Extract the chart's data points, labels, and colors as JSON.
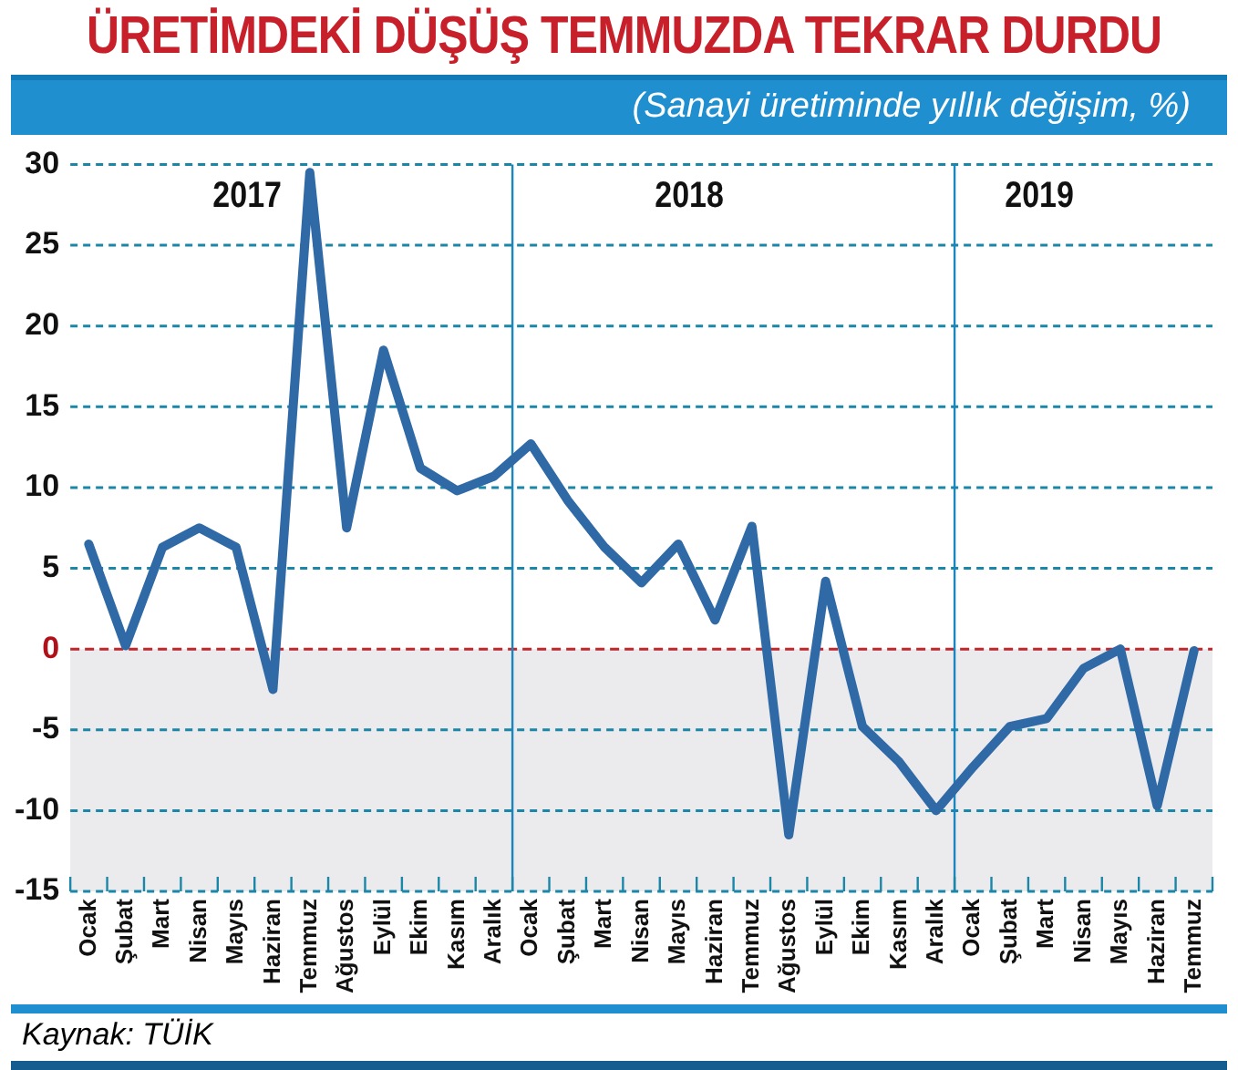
{
  "chart_data": {
    "type": "line",
    "title": "ÜRETİMDEKİ DÜŞÜŞ TEMMUZDA TEKRAR DURDU",
    "subtitle": "(Sanayi üretiminde yıllık değişim, %)",
    "categories": [
      "Ocak",
      "Şubat",
      "Mart",
      "Nisan",
      "Mayıs",
      "Haziran",
      "Temmuz",
      "Ağustos",
      "Eylül",
      "Ekim",
      "Kasım",
      "Aralık",
      "Ocak",
      "Şubat",
      "Mart",
      "Nisan",
      "Mayıs",
      "Haziran",
      "Temmuz",
      "Ağustos",
      "Eylül",
      "Ekim",
      "Kasım",
      "Aralık",
      "Ocak",
      "Şubat",
      "Mart",
      "Nisan",
      "Mayıs",
      "Haziran",
      "Temmuz"
    ],
    "series": [
      {
        "color": "#2f69a6",
        "values": [
          6.5,
          0.2,
          6.3,
          7.5,
          6.3,
          -2.5,
          29.5,
          7.5,
          18.5,
          11.2,
          9.8,
          10.7,
          12.7,
          9.2,
          6.3,
          4.1,
          6.5,
          1.8,
          7.6,
          -11.5,
          4.2,
          -4.8,
          -7,
          -10,
          -7.3,
          -4.8,
          -4.3,
          -1.2,
          0,
          -9.7,
          -0.1
        ]
      }
    ],
    "ylim": [
      -15,
      30
    ],
    "yticks": [
      -15,
      -10,
      -5,
      0,
      5,
      10,
      15,
      20,
      25,
      30
    ],
    "grid": "y",
    "legend": false,
    "marker": "none",
    "line_style": "solid",
    "ref_lines": [
      {
        "axis": "y",
        "value": 0,
        "color": "#c0272d",
        "line_style": "dashed"
      }
    ],
    "bands": [
      {
        "axis": "y",
        "from": -15,
        "to": 0,
        "color": "#ebebee"
      }
    ],
    "annotations": [
      "2017",
      "2018",
      "2019",
      "Kaynak: TÜİK"
    ]
  }
}
